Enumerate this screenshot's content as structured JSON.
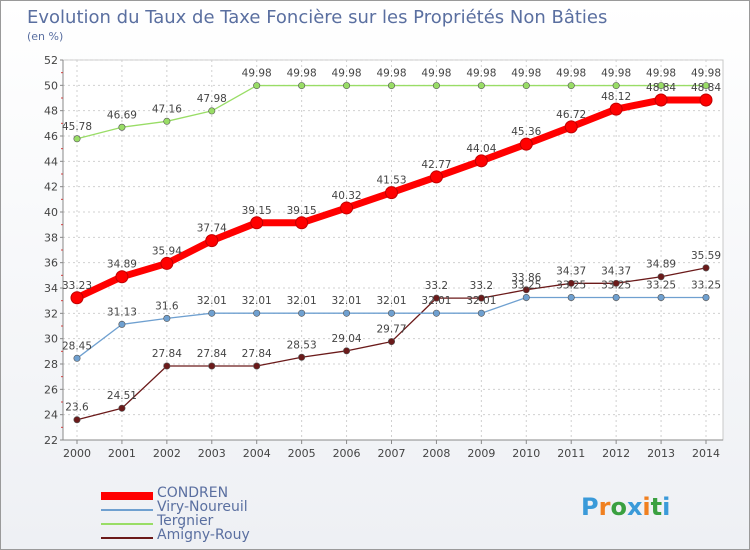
{
  "title": "Evolution du Taux de Taxe Foncière sur les Propriétés Non Bâties",
  "subtitle": "(en %)",
  "logo": {
    "letters": [
      "P",
      "r",
      "o",
      "x",
      "i",
      "t",
      "i"
    ],
    "colors": [
      "#3a9ad9",
      "#f08020",
      "#3aa040",
      "#3a9ad9",
      "#f08020",
      "#3aa040",
      "#3a9ad9"
    ]
  },
  "chart_data": {
    "type": "line",
    "x": [
      "2000",
      "2001",
      "2002",
      "2003",
      "2004",
      "2005",
      "2006",
      "2007",
      "2008",
      "2009",
      "2010",
      "2011",
      "2012",
      "2013",
      "2014"
    ],
    "ylim": [
      22,
      52
    ],
    "yticks": [
      "22",
      "24",
      "26",
      "28",
      "30",
      "32",
      "34",
      "36",
      "38",
      "40",
      "42",
      "44",
      "46",
      "48",
      "50",
      "52"
    ],
    "series": [
      {
        "name": "CONDREN",
        "color": "#ff0000",
        "bold": true,
        "values": [
          33.23,
          34.89,
          35.94,
          37.74,
          39.15,
          39.15,
          40.32,
          41.53,
          42.77,
          44.04,
          45.36,
          46.72,
          48.12,
          48.84,
          48.84
        ],
        "labels": [
          "33.23",
          "34.89",
          "35.94",
          "37.74",
          "39.15",
          "39.15",
          "40.32",
          "41.53",
          "42.77",
          "44.04",
          "45.36",
          "46.72",
          "48.12",
          "48.84",
          "48.84"
        ]
      },
      {
        "name": "Viry-Noureuil",
        "color": "#6fa0d0",
        "bold": false,
        "values": [
          28.45,
          31.13,
          31.6,
          32.01,
          32.01,
          32.01,
          32.01,
          32.01,
          32.01,
          32.01,
          33.25,
          33.25,
          33.25,
          33.25,
          33.25
        ],
        "labels": [
          "28.45",
          "31.13",
          "31.6",
          "32.01",
          "32.01",
          "32.01",
          "32.01",
          "32.01",
          "32.01",
          "32.01",
          "33.25",
          "33.25",
          "33.25",
          "33.25",
          "33.25"
        ]
      },
      {
        "name": "Tergnier",
        "color": "#99dd66",
        "bold": false,
        "values": [
          45.78,
          46.69,
          47.16,
          47.98,
          49.98,
          49.98,
          49.98,
          49.98,
          49.98,
          49.98,
          49.98,
          49.98,
          49.98,
          49.98,
          49.98
        ],
        "labels": [
          "45.78",
          "46.69",
          "47.16",
          "47.98",
          "49.98",
          "49.98",
          "49.98",
          "49.98",
          "49.98",
          "49.98",
          "49.98",
          "49.98",
          "49.98",
          "49.98",
          "49.98"
        ]
      },
      {
        "name": "Amigny-Rouy",
        "color": "#6b1a1a",
        "bold": false,
        "values": [
          23.6,
          24.51,
          27.84,
          27.84,
          27.84,
          28.53,
          29.04,
          29.77,
          33.2,
          33.2,
          33.86,
          34.37,
          34.37,
          34.89,
          35.59
        ],
        "labels": [
          "23.6",
          "24.51",
          "27.84",
          "27.84",
          "27.84",
          "28.53",
          "29.04",
          "29.77",
          "33.2",
          "33.2",
          "33.86",
          "34.37",
          "34.37",
          "34.89",
          "35.59"
        ]
      }
    ]
  }
}
